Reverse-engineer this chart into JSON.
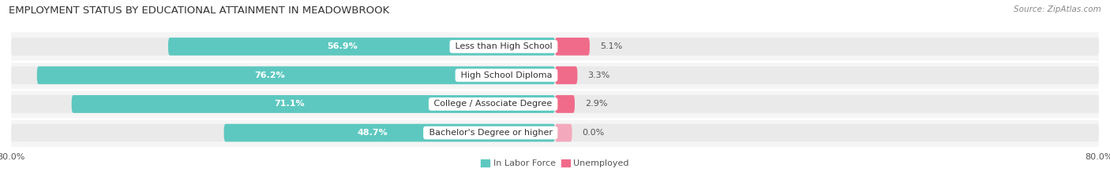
{
  "title": "EMPLOYMENT STATUS BY EDUCATIONAL ATTAINMENT IN MEADOWBROOK",
  "source": "Source: ZipAtlas.com",
  "categories": [
    "Less than High School",
    "High School Diploma",
    "College / Associate Degree",
    "Bachelor's Degree or higher"
  ],
  "labor_force": [
    56.9,
    76.2,
    71.1,
    48.7
  ],
  "unemployed": [
    5.1,
    3.3,
    2.9,
    0.0
  ],
  "labor_force_color": "#5DC8C0",
  "unemployed_color": "#F06B8A",
  "unemployed_color_light": "#F4A8BC",
  "bar_bg_color": "#EAEAEA",
  "bar_height": 0.62,
  "xlim": [
    -80,
    80
  ],
  "xtick_left": -80,
  "xtick_right": 80,
  "xtick_left_label": "80.0%",
  "xtick_right_label": "80.0%",
  "title_fontsize": 9.5,
  "source_fontsize": 7.5,
  "label_fontsize": 8,
  "bar_label_fontsize": 8,
  "tick_fontsize": 8,
  "legend_labels": [
    "In Labor Force",
    "Unemployed"
  ],
  "background_color": "#FFFFFF",
  "row_bg_color": "#F5F5F5"
}
